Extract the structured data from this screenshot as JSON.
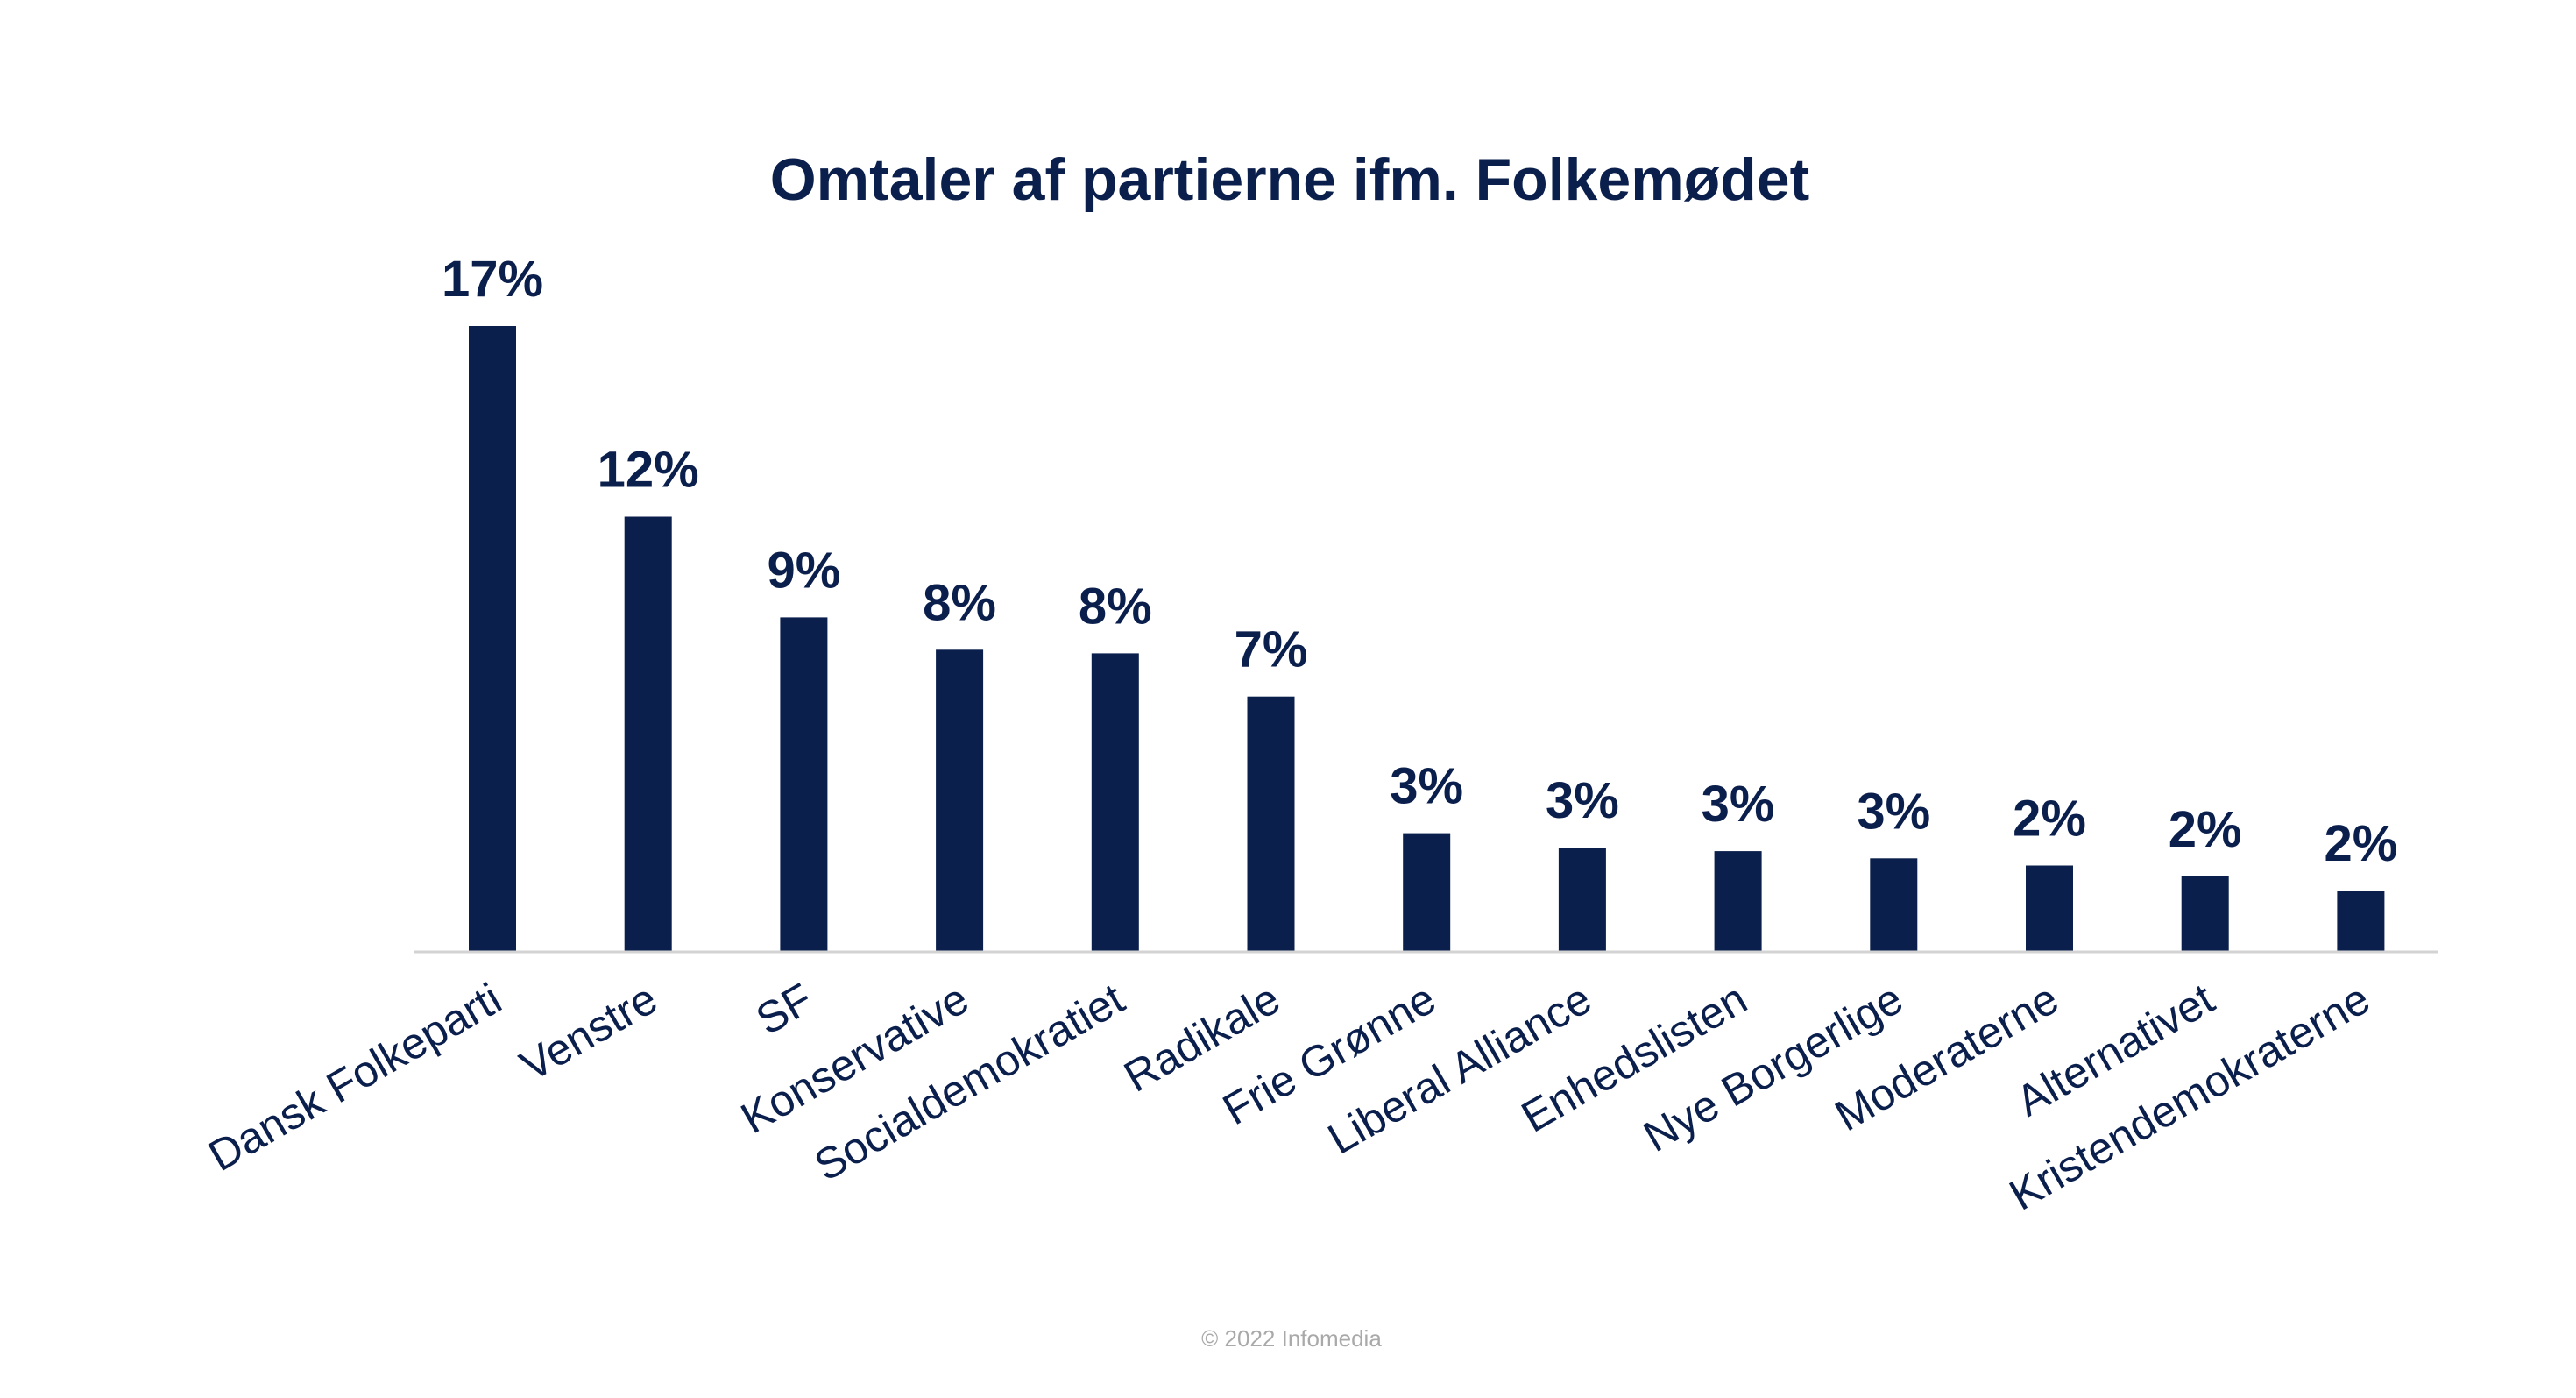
{
  "chart_data": {
    "type": "bar",
    "title": "Omtaler af partierne ifm. Folkemødet",
    "xlabel": "",
    "ylabel": "",
    "categories": [
      "Dansk Folkeparti",
      "Venstre",
      "SF",
      "Konservative",
      "Socialdemokratiet",
      "Radikale",
      "Frie Grønne",
      "Liberal Alliance",
      "Enhedslisten",
      "Nye Borgerlige",
      "Moderaterne",
      "Alternativet",
      "Kristendemokraterne"
    ],
    "values": [
      17.4,
      12.1,
      9.3,
      8.4,
      8.3,
      7.1,
      3.3,
      2.9,
      2.8,
      2.6,
      2.4,
      2.1,
      1.7
    ],
    "value_labels": [
      "17%",
      "12%",
      "9%",
      "8%",
      "8%",
      "7%",
      "3%",
      "3%",
      "3%",
      "3%",
      "2%",
      "2%",
      "2%"
    ],
    "ylim": [
      0,
      17.4
    ],
    "grid": false,
    "legend": "none",
    "bar_color": "#0b1f4d",
    "axis_color": "#d3d3d3",
    "label_color": "#0b1f4d"
  },
  "footer": {
    "copyright": "© 2022 Infomedia"
  }
}
